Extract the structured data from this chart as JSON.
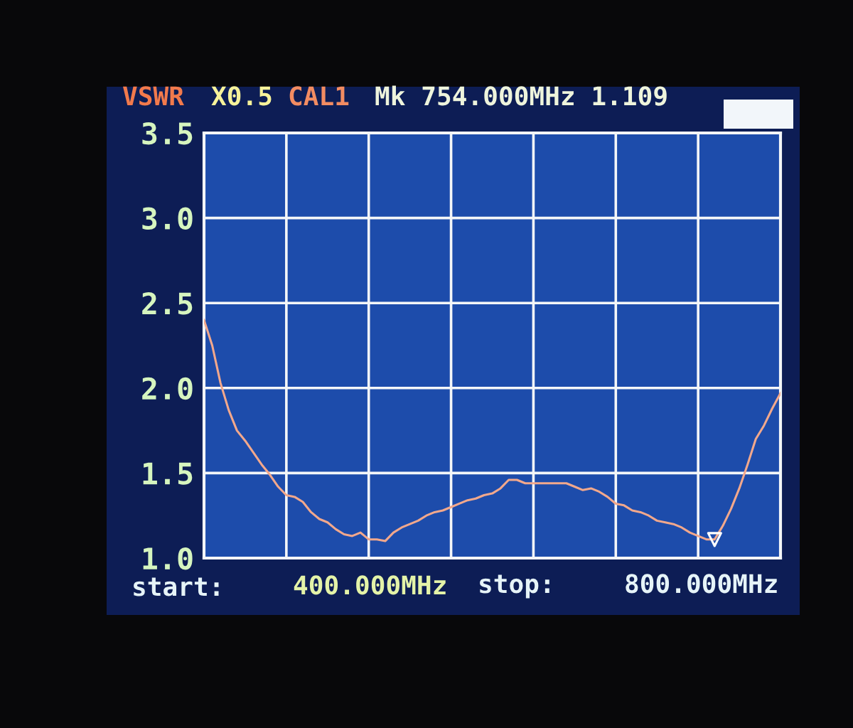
{
  "chart_data": {
    "type": "line",
    "ylabel": "VSWR",
    "annotations": [
      "X0.5",
      "CAL1",
      "Mk 754.000MHz 1.109",
      "start:",
      "400.000MHz",
      "stop:",
      "800.000MHz"
    ],
    "categories": [
      null,
      null,
      null,
      null,
      null,
      null,
      null,
      null,
      null,
      null,
      null,
      null,
      null,
      null,
      null,
      null,
      null,
      null,
      null,
      null,
      null,
      null,
      null,
      null,
      null,
      null,
      null,
      null,
      null,
      null,
      null,
      null,
      null,
      null,
      null,
      null,
      null,
      null,
      null,
      null,
      null,
      null,
      null,
      null,
      null,
      null,
      null,
      null,
      null,
      null,
      null,
      null,
      null,
      null,
      null,
      null,
      null,
      null,
      null,
      null,
      null,
      null,
      null,
      null,
      null,
      null,
      null,
      null,
      null,
      null,
      null
    ],
    "series": [
      {
        "color": "#f2a88c",
        "values": [
          2.4,
          2.25,
          2.03,
          1.87,
          1.75,
          1.69,
          1.62,
          1.55,
          1.49,
          1.42,
          1.37,
          1.36,
          1.33,
          1.27,
          1.23,
          1.21,
          1.17,
          1.14,
          1.13,
          1.15,
          1.11,
          1.11,
          1.1,
          1.15,
          1.18,
          1.2,
          1.22,
          1.25,
          1.27,
          1.28,
          1.3,
          1.32,
          1.34,
          1.35,
          1.37,
          1.38,
          1.41,
          1.46,
          1.46,
          1.44,
          1.44,
          1.44,
          1.44,
          1.44,
          1.44,
          1.42,
          1.4,
          1.41,
          1.39,
          1.36,
          1.32,
          1.31,
          1.28,
          1.27,
          1.25,
          1.22,
          1.21,
          1.2,
          1.18,
          1.15,
          1.13,
          1.11,
          1.11,
          1.19,
          1.29,
          1.41,
          1.55,
          1.7,
          1.78,
          1.88,
          1.97
        ]
      },
      {
        "type": "scatter",
        "color": "#ffffff",
        "marker": "triangle",
        "values": [
          null,
          null,
          null,
          null,
          null,
          null,
          null,
          null,
          null,
          null,
          null,
          null,
          null,
          null,
          null,
          null,
          null,
          null,
          null,
          null,
          null,
          null,
          null,
          null,
          null,
          null,
          null,
          null,
          null,
          null,
          null,
          null,
          null,
          null,
          null,
          null,
          null,
          null,
          null,
          null,
          null,
          null,
          null,
          null,
          null,
          null,
          null,
          null,
          null,
          null,
          null,
          null,
          null,
          null,
          null,
          null,
          null,
          null,
          null,
          null,
          null,
          null,
          1.109,
          null,
          null,
          null,
          null,
          null,
          null,
          null,
          null
        ]
      }
    ],
    "ylim": [
      1.0,
      3.5
    ],
    "yticks": [
      {
        "value": 1,
        "label": "1.0"
      },
      {
        "value": 1.5,
        "label": "1.5"
      },
      {
        "value": 2,
        "label": "2.0"
      },
      {
        "value": 2.5,
        "label": "2.5"
      },
      {
        "value": 3,
        "label": "3.0"
      },
      {
        "value": 3.5,
        "label": "3.5"
      }
    ],
    "grid": true,
    "tick_labels": "y"
  }
}
